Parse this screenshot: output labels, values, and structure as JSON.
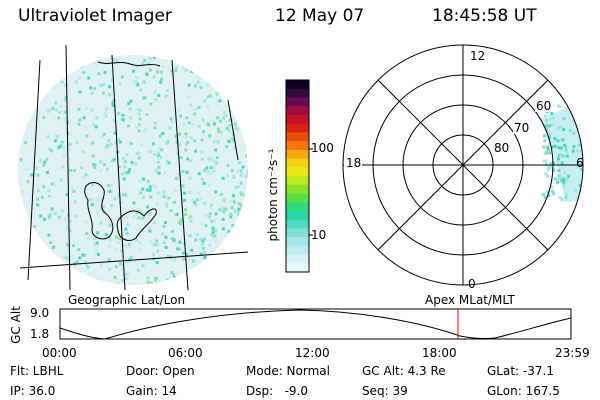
{
  "header": {
    "instrument": "Ultraviolet Imager",
    "date": "12 May 07",
    "time": "18:45:58 UT"
  },
  "colorbar": {
    "unit_label": "photon cm⁻²s⁻¹",
    "ticks": [
      "100",
      "10"
    ],
    "colors": [
      "#eaf7f9",
      "#d6f1f3",
      "#bfeaee",
      "#a3e6e7",
      "#7fe0d8",
      "#4fd8c0",
      "#28d6a4",
      "#30dc78",
      "#5be049",
      "#8ae22c",
      "#bde81c",
      "#e8ea18",
      "#f6cf14",
      "#f9a510",
      "#f5760c",
      "#ea4c0a",
      "#dc2212",
      "#c8102c",
      "#a00c40",
      "#6a0a50",
      "#300a40",
      "#100020"
    ]
  },
  "polar_plot": {
    "label_12": "12",
    "label_18": "18",
    "label_6": "6",
    "label_0": "0",
    "lat_60": "60",
    "lat_70": "70",
    "lat_80": "80"
  },
  "alt_plot": {
    "left_label": "Geographic Lat/Lon",
    "right_label": "Apex MLat/MLT",
    "ylabel": "GC Alt",
    "ymax": "9.0",
    "ymin": "1.8",
    "x_ticks": [
      "00:00",
      "06:00",
      "12:00",
      "18:00",
      "23:59"
    ],
    "current_marker_color": "#ff0000"
  },
  "info_rows": [
    {
      "col1": "Flt: LBHL",
      "col2": "Door: Open",
      "col3": "Mode: Normal",
      "col4": "GC Alt: 4.3 Re",
      "col5": "GLat: -37.1"
    },
    {
      "col1": "IP: 36.0",
      "col2": "Gain: 14",
      "col3": "Dsp:   -9.0",
      "col4": "Seq: 39",
      "col5": "GLon: 167.5"
    }
  ]
}
